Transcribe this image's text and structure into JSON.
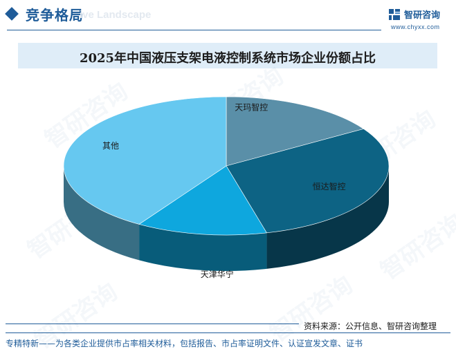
{
  "header": {
    "section_title": "竞争格局",
    "section_subtitle": "ive Landscape",
    "brand_name": "智研咨询",
    "brand_url": "www.chyxx.com",
    "logo_icon": "chyxx-logo-icon"
  },
  "watermark_text": "智研咨询",
  "chart_data": {
    "type": "pie",
    "title": "2025年中国液压支架电液控制系统市场企业份额占比",
    "categories": [
      "天玛智控",
      "恒达智控",
      "天津华宁",
      "其他"
    ],
    "values": [
      16,
      30,
      13,
      41
    ],
    "colors": [
      "#5a8fa8",
      "#0d6384",
      "#0ea7de",
      "#66c8f0"
    ]
  },
  "footer": {
    "source": "资料来源：公开信息、智研咨询整理",
    "note": "专精特新——为各类企业提供市占率相关材料，包括报告、市占率证明文件、认证宣发文章、证书"
  }
}
